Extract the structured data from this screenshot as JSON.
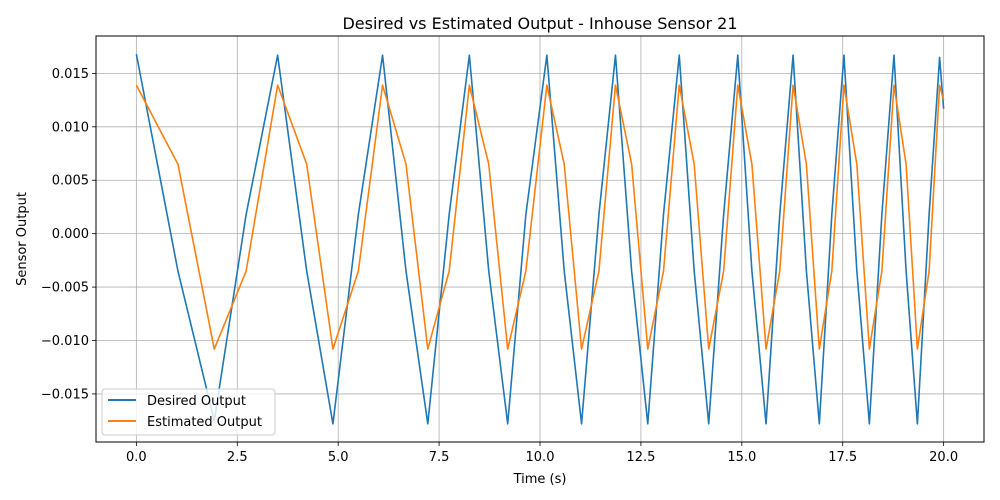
{
  "chart_data": {
    "type": "line",
    "title": "Desired vs Estimated Output - Inhouse Sensor 21",
    "xlabel": "Time (s)",
    "ylabel": "Sensor Output",
    "xlim": [
      -1.0,
      21.0
    ],
    "ylim": [
      -0.0195,
      0.0185
    ],
    "xticks": [
      0.0,
      2.5,
      5.0,
      7.5,
      10.0,
      12.5,
      15.0,
      17.5,
      20.0
    ],
    "xtick_labels": [
      "0.0",
      "2.5",
      "5.0",
      "7.5",
      "10.0",
      "12.5",
      "15.0",
      "17.5",
      "20.0"
    ],
    "yticks": [
      -0.015,
      -0.01,
      -0.005,
      0.0,
      0.005,
      0.01,
      0.015
    ],
    "ytick_labels": [
      "−0.015",
      "−0.010",
      "−0.005",
      "0.000",
      "0.005",
      "0.010",
      "0.015"
    ],
    "grid": true,
    "legend_position": "lower-left",
    "series": [
      {
        "name": "Desired Output",
        "color": "#1f77b4",
        "x": [
          0.0,
          1.03,
          1.93,
          2.72,
          3.5,
          4.22,
          4.87,
          5.5,
          6.1,
          6.68,
          7.22,
          7.75,
          8.25,
          8.73,
          9.2,
          9.65,
          10.17,
          10.6,
          11.03,
          11.46,
          11.87,
          12.27,
          12.67,
          13.06,
          13.45,
          13.82,
          14.18,
          14.55,
          14.9,
          15.25,
          15.6,
          15.94,
          16.27,
          16.6,
          16.92,
          17.23,
          17.53,
          17.85,
          18.16,
          18.47,
          18.77,
          19.07,
          19.35,
          19.64,
          19.9,
          20.0
        ],
        "values": [
          0.0168,
          -0.0035,
          -0.0175,
          0.0018,
          0.0167,
          -0.0035,
          -0.0178,
          0.0018,
          0.0167,
          -0.0035,
          -0.0178,
          0.0018,
          0.0167,
          -0.0035,
          -0.0178,
          0.0018,
          0.0167,
          -0.0035,
          -0.0178,
          0.0018,
          0.0167,
          -0.0035,
          -0.0178,
          0.0018,
          0.0167,
          -0.0035,
          -0.0178,
          0.0018,
          0.0167,
          -0.0035,
          -0.0178,
          0.0018,
          0.0167,
          -0.0035,
          -0.0178,
          0.0018,
          0.0167,
          -0.0035,
          -0.0178,
          0.0018,
          0.0167,
          -0.0035,
          -0.0178,
          0.0018,
          0.0165,
          0.0117
        ]
      },
      {
        "name": "Estimated Output",
        "color": "#ff7f0e",
        "x": [
          0.0,
          1.03,
          1.93,
          2.72,
          3.5,
          4.22,
          4.87,
          5.5,
          6.1,
          6.68,
          7.22,
          7.75,
          8.25,
          8.73,
          9.2,
          9.65,
          10.17,
          10.6,
          11.03,
          11.46,
          11.87,
          12.27,
          12.67,
          13.06,
          13.45,
          13.82,
          14.18,
          14.55,
          14.9,
          15.25,
          15.6,
          15.94,
          16.27,
          16.6,
          16.92,
          17.23,
          17.53,
          17.85,
          18.16,
          18.47,
          18.77,
          19.07,
          19.35,
          19.64,
          19.9,
          20.0
        ],
        "values": [
          0.0139,
          0.0065,
          -0.0108,
          -0.0035,
          0.0139,
          0.0065,
          -0.0108,
          -0.0035,
          0.0139,
          0.0065,
          -0.0108,
          -0.0035,
          0.0139,
          0.0065,
          -0.0108,
          -0.0035,
          0.0139,
          0.0065,
          -0.0108,
          -0.0035,
          0.0139,
          0.0065,
          -0.0108,
          -0.0035,
          0.0139,
          0.0065,
          -0.0108,
          -0.0035,
          0.0139,
          0.0065,
          -0.0108,
          -0.0035,
          0.0139,
          0.0065,
          -0.0108,
          -0.0035,
          0.0139,
          0.0065,
          -0.0108,
          -0.0035,
          0.0139,
          0.0065,
          -0.0108,
          -0.0035,
          0.0139,
          0.0125
        ]
      }
    ]
  }
}
